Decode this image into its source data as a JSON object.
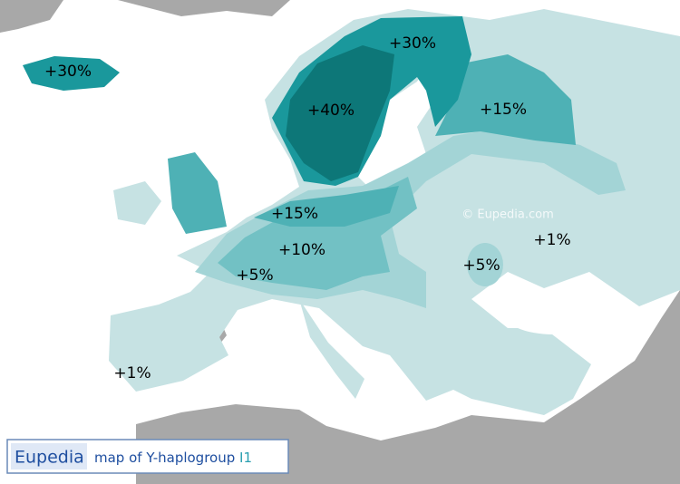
{
  "map": {
    "labels": [
      {
        "text": "+30%"
      },
      {
        "text": "+30%"
      },
      {
        "text": "+40%"
      },
      {
        "text": "+15%"
      },
      {
        "text": "+15%"
      },
      {
        "text": "+10%"
      },
      {
        "text": "+5%"
      },
      {
        "text": "+5%"
      },
      {
        "text": "+1%"
      },
      {
        "text": "+1%"
      }
    ],
    "watermark": "© Eupedia.com",
    "legend": {
      "brand": "Eupedia",
      "caption": "map of Y-haplogroup",
      "haplogroup": "I1"
    }
  }
}
